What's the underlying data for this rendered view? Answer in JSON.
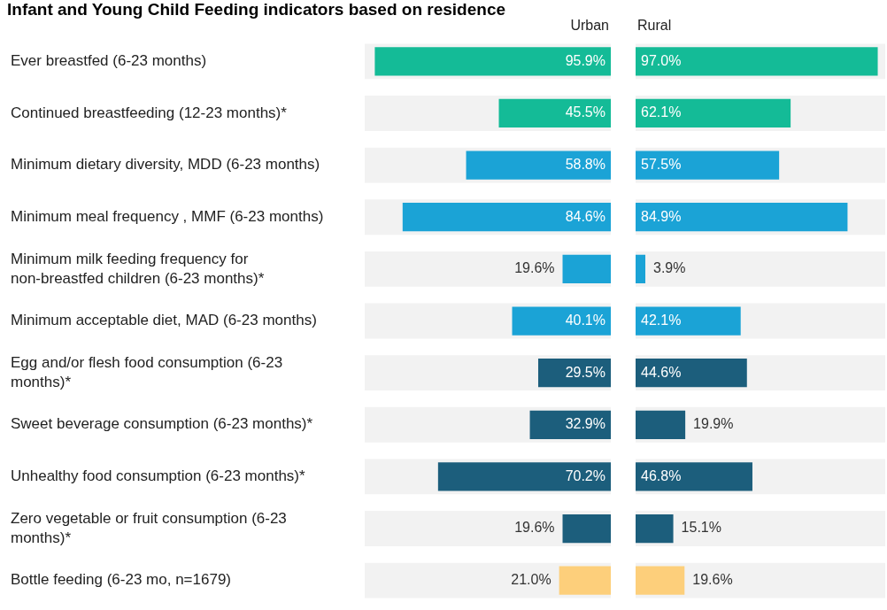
{
  "chart_data": [
    {
      "type": "bar",
      "orientation": "horizontal",
      "title": "Infant and Young Child Feeding indicators based on residence",
      "subtitle": "Urban",
      "categories": [
        "Ever breastfed (6-23 months)",
        "Continued breastfeeding (12-23 months)*",
        "Minimum dietary diversity, MDD (6-23 months)",
        "Minimum meal frequency , MMF (6-23 months)",
        "Minimum milk feeding frequency for non-breastfed children (6-23 months)*",
        "Minimum acceptable diet, MAD (6-23 months)",
        "Egg and/or flesh food consumption (6-23 months)*",
        "Sweet beverage consumption (6-23 months)*",
        "Unhealthy food consumption (6-23 months)*",
        "Zero vegetable or fruit consumption (6-23 months)*",
        "Bottle feeding (6-23 mo, n=1679)"
      ],
      "values": [
        95.9,
        45.5,
        58.8,
        84.6,
        19.6,
        40.1,
        29.5,
        32.9,
        70.2,
        19.6,
        21.0
      ],
      "value_labels": [
        "95.9%",
        "45.5%",
        "58.8%",
        "84.6%",
        "19.6%",
        "40.1%",
        "29.5%",
        "32.9%",
        "70.2%",
        "19.6%",
        "21.0%"
      ],
      "colors": [
        "#14bb97",
        "#14bb97",
        "#1ba3d6",
        "#1ba3d6",
        "#1ba3d6",
        "#1ba3d6",
        "#1c5e7c",
        "#1c5e7c",
        "#1c5e7c",
        "#1c5e7c",
        "#fdcf7b"
      ],
      "xlim": [
        100,
        0
      ],
      "tick_labels": "y",
      "grid": false,
      "legend": false
    },
    {
      "type": "bar",
      "orientation": "horizontal",
      "subtitle": "Rural",
      "categories": [
        null,
        null,
        null,
        null,
        null,
        null,
        null,
        null,
        null,
        null,
        null
      ],
      "values": [
        97.0,
        62.1,
        57.5,
        84.9,
        3.9,
        42.1,
        44.6,
        19.9,
        46.8,
        15.1,
        19.6
      ],
      "value_labels": [
        "97.0%",
        "62.1%",
        "57.5%",
        "84.9%",
        "3.9%",
        "42.1%",
        "44.6%",
        "19.9%",
        "46.8%",
        "15.1%",
        "19.6%"
      ],
      "colors": [
        "#14bb97",
        "#14bb97",
        "#1ba3d6",
        "#1ba3d6",
        "#1ba3d6",
        "#1ba3d6",
        "#1c5e7c",
        "#1c5e7c",
        "#1c5e7c",
        "#1c5e7c",
        "#fdcf7b"
      ],
      "xlim": [
        0,
        100
      ],
      "tick_labels": false,
      "grid": false,
      "legend": false
    }
  ]
}
